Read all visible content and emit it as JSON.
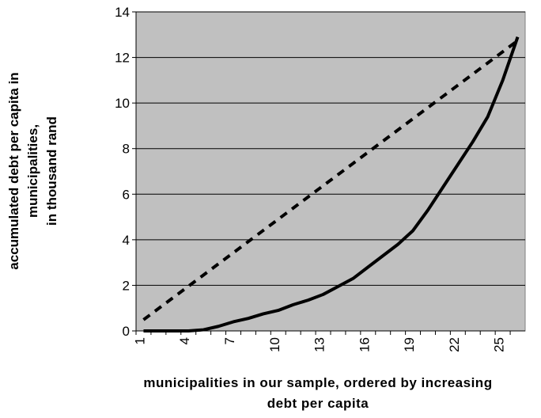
{
  "chart_data": {
    "type": "line",
    "x_label": [
      "municipalities in our sample, ordered by increasing",
      "debt per capita"
    ],
    "y_label": [
      "accumulated debt per capita in",
      "municipalities,",
      "in thousand rand"
    ],
    "categories": [
      1,
      null,
      null,
      4,
      null,
      null,
      7,
      null,
      null,
      10,
      null,
      null,
      13,
      null,
      null,
      16,
      null,
      null,
      19,
      null,
      null,
      22,
      null,
      null,
      25,
      null
    ],
    "series": [
      {
        "color": "#000000",
        "dash": false,
        "values": [
          0,
          0,
          0,
          0,
          0.05,
          0.2,
          0.4,
          0.55,
          0.75,
          0.9,
          1.15,
          1.35,
          1.6,
          1.95,
          2.3,
          2.8,
          3.3,
          3.8,
          4.4,
          5.3,
          6.3,
          7.3,
          8.3,
          9.4,
          11,
          12.9
        ]
      },
      {
        "color": "#000000",
        "dash": true,
        "values": [
          0.49,
          0.98,
          1.47,
          1.96,
          2.45,
          2.94,
          3.43,
          3.92,
          4.41,
          4.9,
          5.39,
          5.88,
          6.37,
          6.86,
          7.35,
          7.84,
          8.33,
          8.82,
          9.31,
          9.8,
          10.29,
          10.78,
          11.27,
          11.76,
          12.25,
          12.74
        ]
      }
    ],
    "ylim": [
      0,
      14
    ],
    "yticks": [
      0,
      2,
      4,
      6,
      8,
      10,
      12,
      14
    ],
    "grid": true,
    "plot_color": "#c0c0c0"
  }
}
